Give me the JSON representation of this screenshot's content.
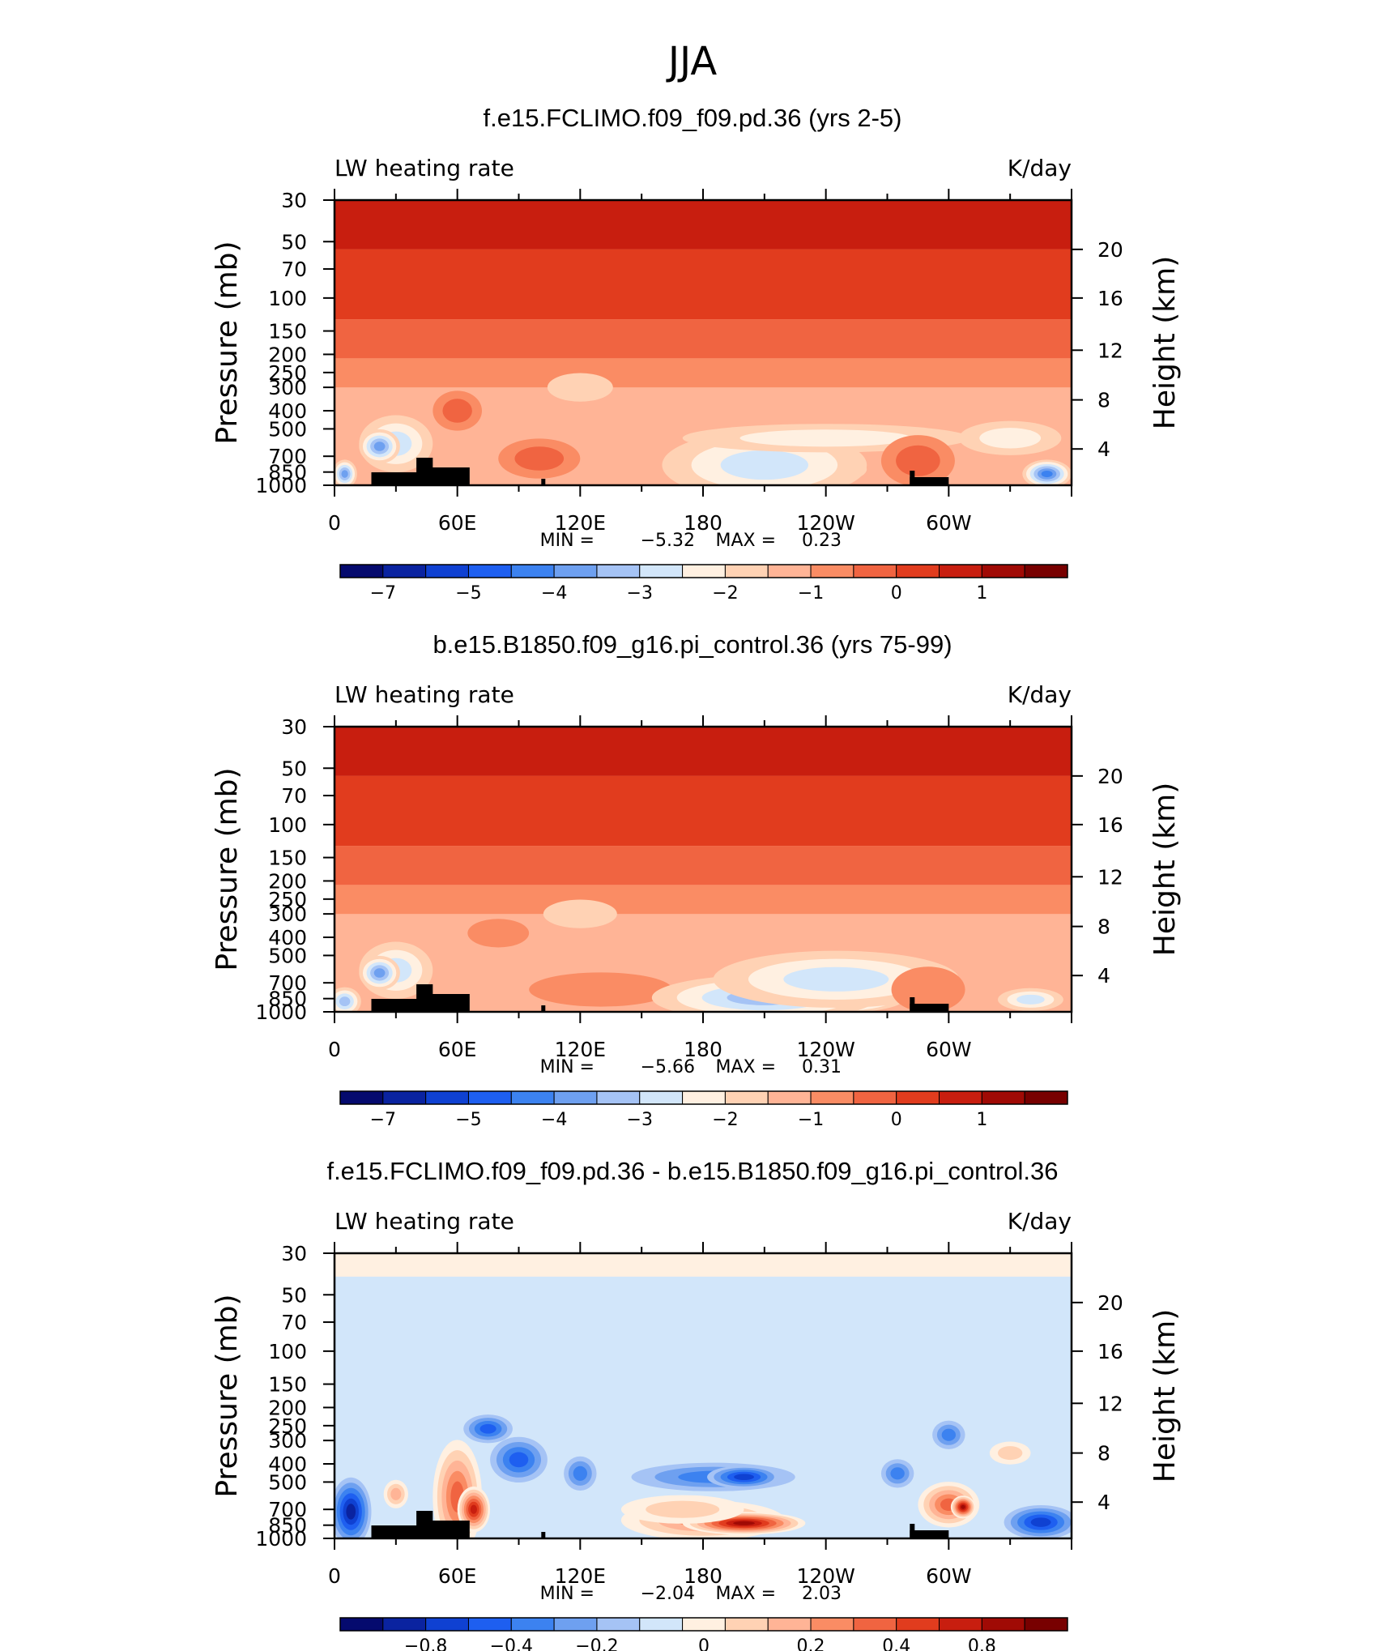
{
  "chart_data": {
    "type": "contour",
    "figure_title": "JJA",
    "panels": [
      {
        "title": "f.e15.FCLIMO.f09_f09.pd.36 (yrs 2-5)",
        "left_string": "LW heating rate",
        "right_string": "K/day",
        "ylabel_left": "Pressure (mb)",
        "ylabel_right": "Height (km)",
        "x_ticks": [
          "0",
          "60E",
          "120E",
          "180",
          "120W",
          "60W"
        ],
        "y_ticks": [
          "30",
          "50",
          "70",
          "100",
          "150",
          "200",
          "250",
          "300",
          "400",
          "500",
          "700",
          "850",
          "1000"
        ],
        "height_ticks": [
          "20",
          "16",
          "12",
          "8",
          "4"
        ],
        "min_label": "MIN =",
        "min_value": "−5.32",
        "max_label": "MAX =",
        "max_value": "0.23",
        "min": -5.32,
        "max": 0.23,
        "colorbar_labels": [
          "−7",
          "−5",
          "−4",
          "−3",
          "−2",
          "−1",
          "0",
          "1"
        ]
      },
      {
        "title": "b.e15.B1850.f09_g16.pi_control.36 (yrs 75-99)",
        "left_string": "LW heating rate",
        "right_string": "K/day",
        "ylabel_left": "Pressure (mb)",
        "ylabel_right": "Height (km)",
        "x_ticks": [
          "0",
          "60E",
          "120E",
          "180",
          "120W",
          "60W"
        ],
        "y_ticks": [
          "30",
          "50",
          "70",
          "100",
          "150",
          "200",
          "250",
          "300",
          "400",
          "500",
          "700",
          "850",
          "1000"
        ],
        "height_ticks": [
          "20",
          "16",
          "12",
          "8",
          "4"
        ],
        "min_label": "MIN =",
        "min_value": "−5.66",
        "max_label": "MAX =",
        "max_value": "0.31",
        "min": -5.66,
        "max": 0.31,
        "colorbar_labels": [
          "−7",
          "−5",
          "−4",
          "−3",
          "−2",
          "−1",
          "0",
          "1"
        ]
      },
      {
        "title": "f.e15.FCLIMO.f09_f09.pd.36 - b.e15.B1850.f09_g16.pi_control.36",
        "left_string": "LW heating rate",
        "right_string": "K/day",
        "ylabel_left": "Pressure (mb)",
        "ylabel_right": "Height (km)",
        "x_ticks": [
          "0",
          "60E",
          "120E",
          "180",
          "120W",
          "60W"
        ],
        "y_ticks": [
          "30",
          "50",
          "70",
          "100",
          "150",
          "200",
          "250",
          "300",
          "400",
          "500",
          "700",
          "850",
          "1000"
        ],
        "height_ticks": [
          "20",
          "16",
          "12",
          "8",
          "4"
        ],
        "min_label": "MIN =",
        "min_value": "−2.04",
        "max_label": "MAX =",
        "max_value": "2.03",
        "min": -2.04,
        "max": 2.03,
        "colorbar_labels": [
          "−0.8",
          "−0.4",
          "−0.2",
          "0",
          "0.2",
          "0.4",
          "0.8"
        ]
      }
    ],
    "colormap": [
      "#050a6e",
      "#0a23a0",
      "#0f41d2",
      "#1e5ff0",
      "#3c82f0",
      "#6ea0f0",
      "#a5c3f5",
      "#d2e6fa",
      "#fff0e1",
      "#ffd2b4",
      "#ffb496",
      "#fa8c64",
      "#f06441",
      "#e13c1e",
      "#c81e0f",
      "#a00a05",
      "#780000"
    ]
  }
}
